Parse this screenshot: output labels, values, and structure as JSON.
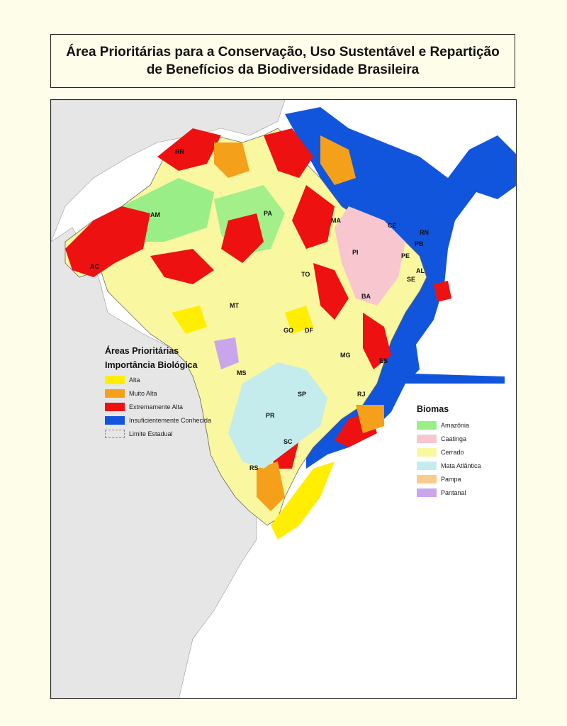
{
  "title": {
    "line1": "Área Prioritárias para a Conservação, Uso Sustentável e Repartição",
    "line2": "de Benefícios da Biodiversidade Brasileira"
  },
  "priority_legend": {
    "heading": "Áreas Prioritárias",
    "subheading": "Importância Biológica",
    "items": [
      {
        "label": "Alta",
        "color": "#ffee00"
      },
      {
        "label": "Muito Alta",
        "color": "#f5a01a"
      },
      {
        "label": "Extremamente Alta",
        "color": "#ee1111"
      },
      {
        "label": "Insuficientemente Conhecida",
        "color": "#1155dd"
      },
      {
        "label": "Limite Estadual",
        "color": "#888888"
      }
    ]
  },
  "biome_legend": {
    "heading": "Biomas",
    "items": [
      {
        "label": "Amazônia",
        "color": "#99ee88"
      },
      {
        "label": "Caatinga",
        "color": "#f7c6cf"
      },
      {
        "label": "Cerrado",
        "color": "#f9f7a0"
      },
      {
        "label": "Mata Atlântica",
        "color": "#c4ecec"
      },
      {
        "label": "Pampa",
        "color": "#f7cc8c"
      },
      {
        "label": "Pantanal",
        "color": "#c9a6ec"
      }
    ]
  },
  "states": [
    "RR",
    "AM",
    "PA",
    "AC",
    "MA",
    "CE",
    "RN",
    "PB",
    "PE",
    "PI",
    "AL",
    "SE",
    "TO",
    "BA",
    "MT",
    "GO",
    "DF",
    "MG",
    "ES",
    "MS",
    "SP",
    "RJ",
    "PR",
    "SC",
    "RS"
  ],
  "colors": {
    "background": "#fdfde9",
    "land": "#e6e6e6",
    "ocean": "#ffffff",
    "base_land_brazil": "#f9f7a0"
  }
}
